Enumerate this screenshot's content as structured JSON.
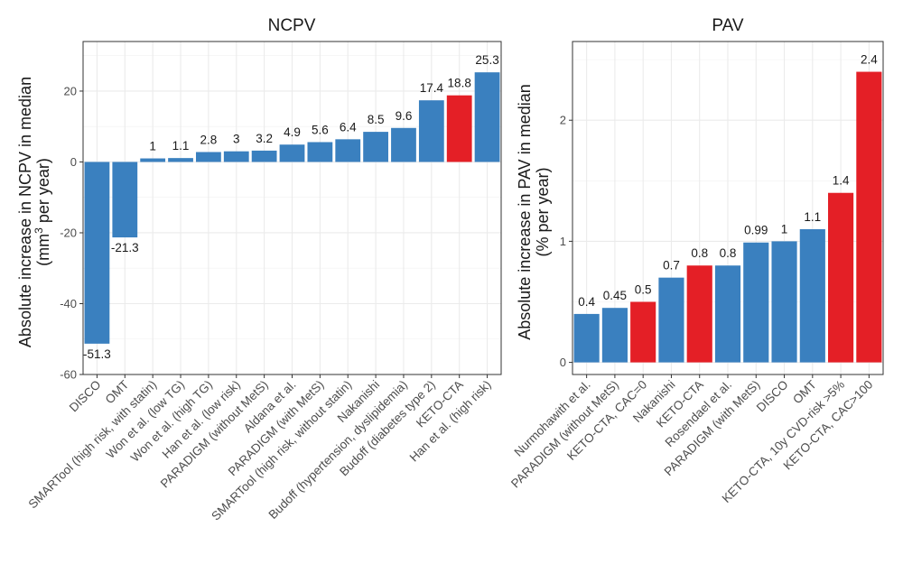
{
  "colors": {
    "blue": "#3A80BF",
    "red": "#E41F26"
  },
  "chart_data": [
    {
      "type": "bar",
      "title": "NCPV",
      "ylabel": "Absolute increase in NCPV in median",
      "ylabel_line2_pre": "(mm",
      "ylabel_line2_sup": "3",
      "ylabel_line2_post": " per year)",
      "ylim": [
        -60,
        34
      ],
      "yticks": [
        -60,
        -40,
        -20,
        0,
        20
      ],
      "categories": [
        "DISCO",
        "OMT",
        "SMARTool (high risk, with statin)",
        "Won et al. (low TG)",
        "Won et al. (high  TG)",
        "Han et al. (low risk)",
        "PARADIGM (without MetS)",
        "Aldana et al.",
        "PARADIGM (with MetS)",
        "SMARTool (high risk, without statin)",
        "Nakanishi",
        "Budoff (hypertension, dyslipidemia)",
        "Budoff (diabetes type 2)",
        "KETO-CTA",
        "Han et al. (high  risk)"
      ],
      "values": [
        -51.3,
        -21.3,
        1,
        1.1,
        2.8,
        3,
        3.2,
        4.9,
        5.6,
        6.4,
        8.5,
        9.6,
        17.4,
        18.8,
        25.3
      ],
      "labels": [
        "-51.3",
        "-21.3",
        "1",
        "1.1",
        "2.8",
        "3",
        "3.2",
        "4.9",
        "5.6",
        "6.4",
        "8.5",
        "9.6",
        "17.4",
        "18.8",
        "25.3"
      ],
      "highlight": [
        false,
        false,
        false,
        false,
        false,
        false,
        false,
        false,
        false,
        false,
        false,
        false,
        false,
        true,
        false
      ]
    },
    {
      "type": "bar",
      "title": "PAV",
      "ylabel": "Absolute increase in PAV in median",
      "ylabel_line2": "(% per year)",
      "ylim": [
        -0.1,
        2.65
      ],
      "yticks": [
        0,
        1,
        2
      ],
      "categories": [
        "Nurmohawith et al.",
        "PARADIGM (without MetS)",
        "KETO-CTA, CAC=0",
        "Nakanishi",
        "KETO-CTA",
        "Rosendael et al.",
        "PARADIGM (with MetS)",
        "DISCO",
        "OMT",
        "KETO-CTA, 10y CVD-risk >5%",
        "KETO-CTA, CAC>100"
      ],
      "values": [
        0.4,
        0.45,
        0.5,
        0.7,
        0.8,
        0.8,
        0.99,
        1,
        1.1,
        1.4,
        2.4
      ],
      "labels": [
        "0.4",
        "0.45",
        "0.5",
        "0.7",
        "0.8",
        "0.8",
        "0.99",
        "1",
        "1.1",
        "1.4",
        "2.4"
      ],
      "highlight": [
        false,
        false,
        true,
        false,
        true,
        false,
        false,
        false,
        false,
        true,
        true
      ]
    }
  ]
}
